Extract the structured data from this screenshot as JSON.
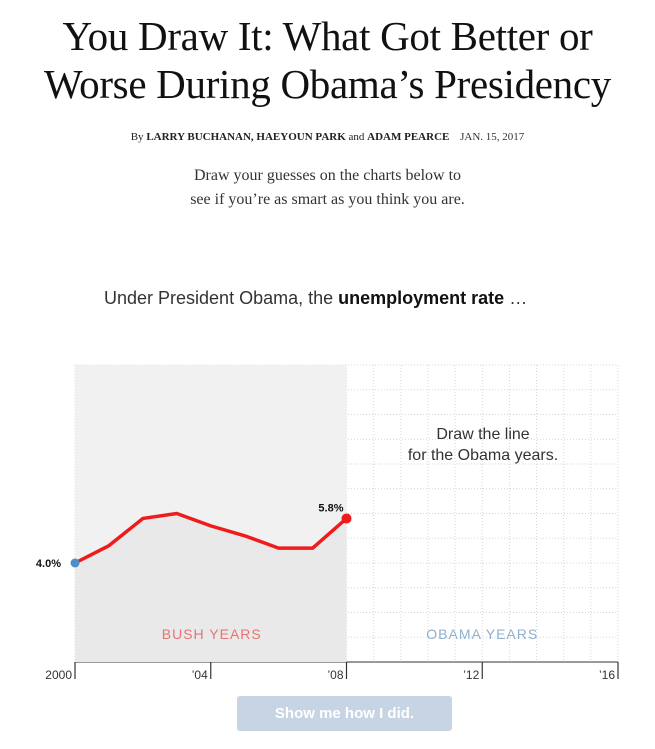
{
  "header": {
    "title_line1": "You Draw It: What Got Better or",
    "title_line2": "Worse During Obama’s Presidency",
    "byline_prefix": "By",
    "byline_authors": "Larry Buchanan, Haeyoun Park",
    "byline_and": "and",
    "byline_author3": "Adam Pearce",
    "date": "JAN. 15, 2017",
    "dek_line1": "Draw your guesses on the charts below to",
    "dek_line2": "see if you’re as smart as you think you are."
  },
  "question": {
    "text_before": "Under President Obama, the",
    "text_bold": "unemployment rate",
    "text_after": "…"
  },
  "chart_data": {
    "type": "line",
    "x": [
      2000,
      2001,
      2002,
      2003,
      2004,
      2005,
      2006,
      2007,
      2008
    ],
    "series": [
      {
        "values": [
          4.0,
          4.7,
          5.8,
          6.0,
          5.5,
          5.1,
          4.6,
          4.6,
          5.8
        ],
        "color": "#ee1c1c"
      }
    ],
    "xlim": [
      2000,
      2016
    ],
    "ylim": [
      0,
      12
    ],
    "x_ticks": [
      2000,
      2004,
      2008,
      2012,
      2016
    ],
    "x_tick_labels": [
      "2000",
      "’04",
      "’08",
      "’12",
      "’16"
    ],
    "start_label": "4.0%",
    "end_label": "5.8%",
    "start_dot_color": "#4a90c8",
    "end_dot_color": "#ee1c1c",
    "shaded_period": [
      2000,
      2008
    ],
    "grid": true,
    "annotation_line1": "Draw the line",
    "annotation_line2": "for the Obama years.",
    "bush_label": "BUSH YEARS",
    "obama_label": "OBAMA YEARS",
    "bush_color": "#e87373",
    "obama_color": "#8fb0cf"
  },
  "button": {
    "label": "Show me how I did."
  }
}
